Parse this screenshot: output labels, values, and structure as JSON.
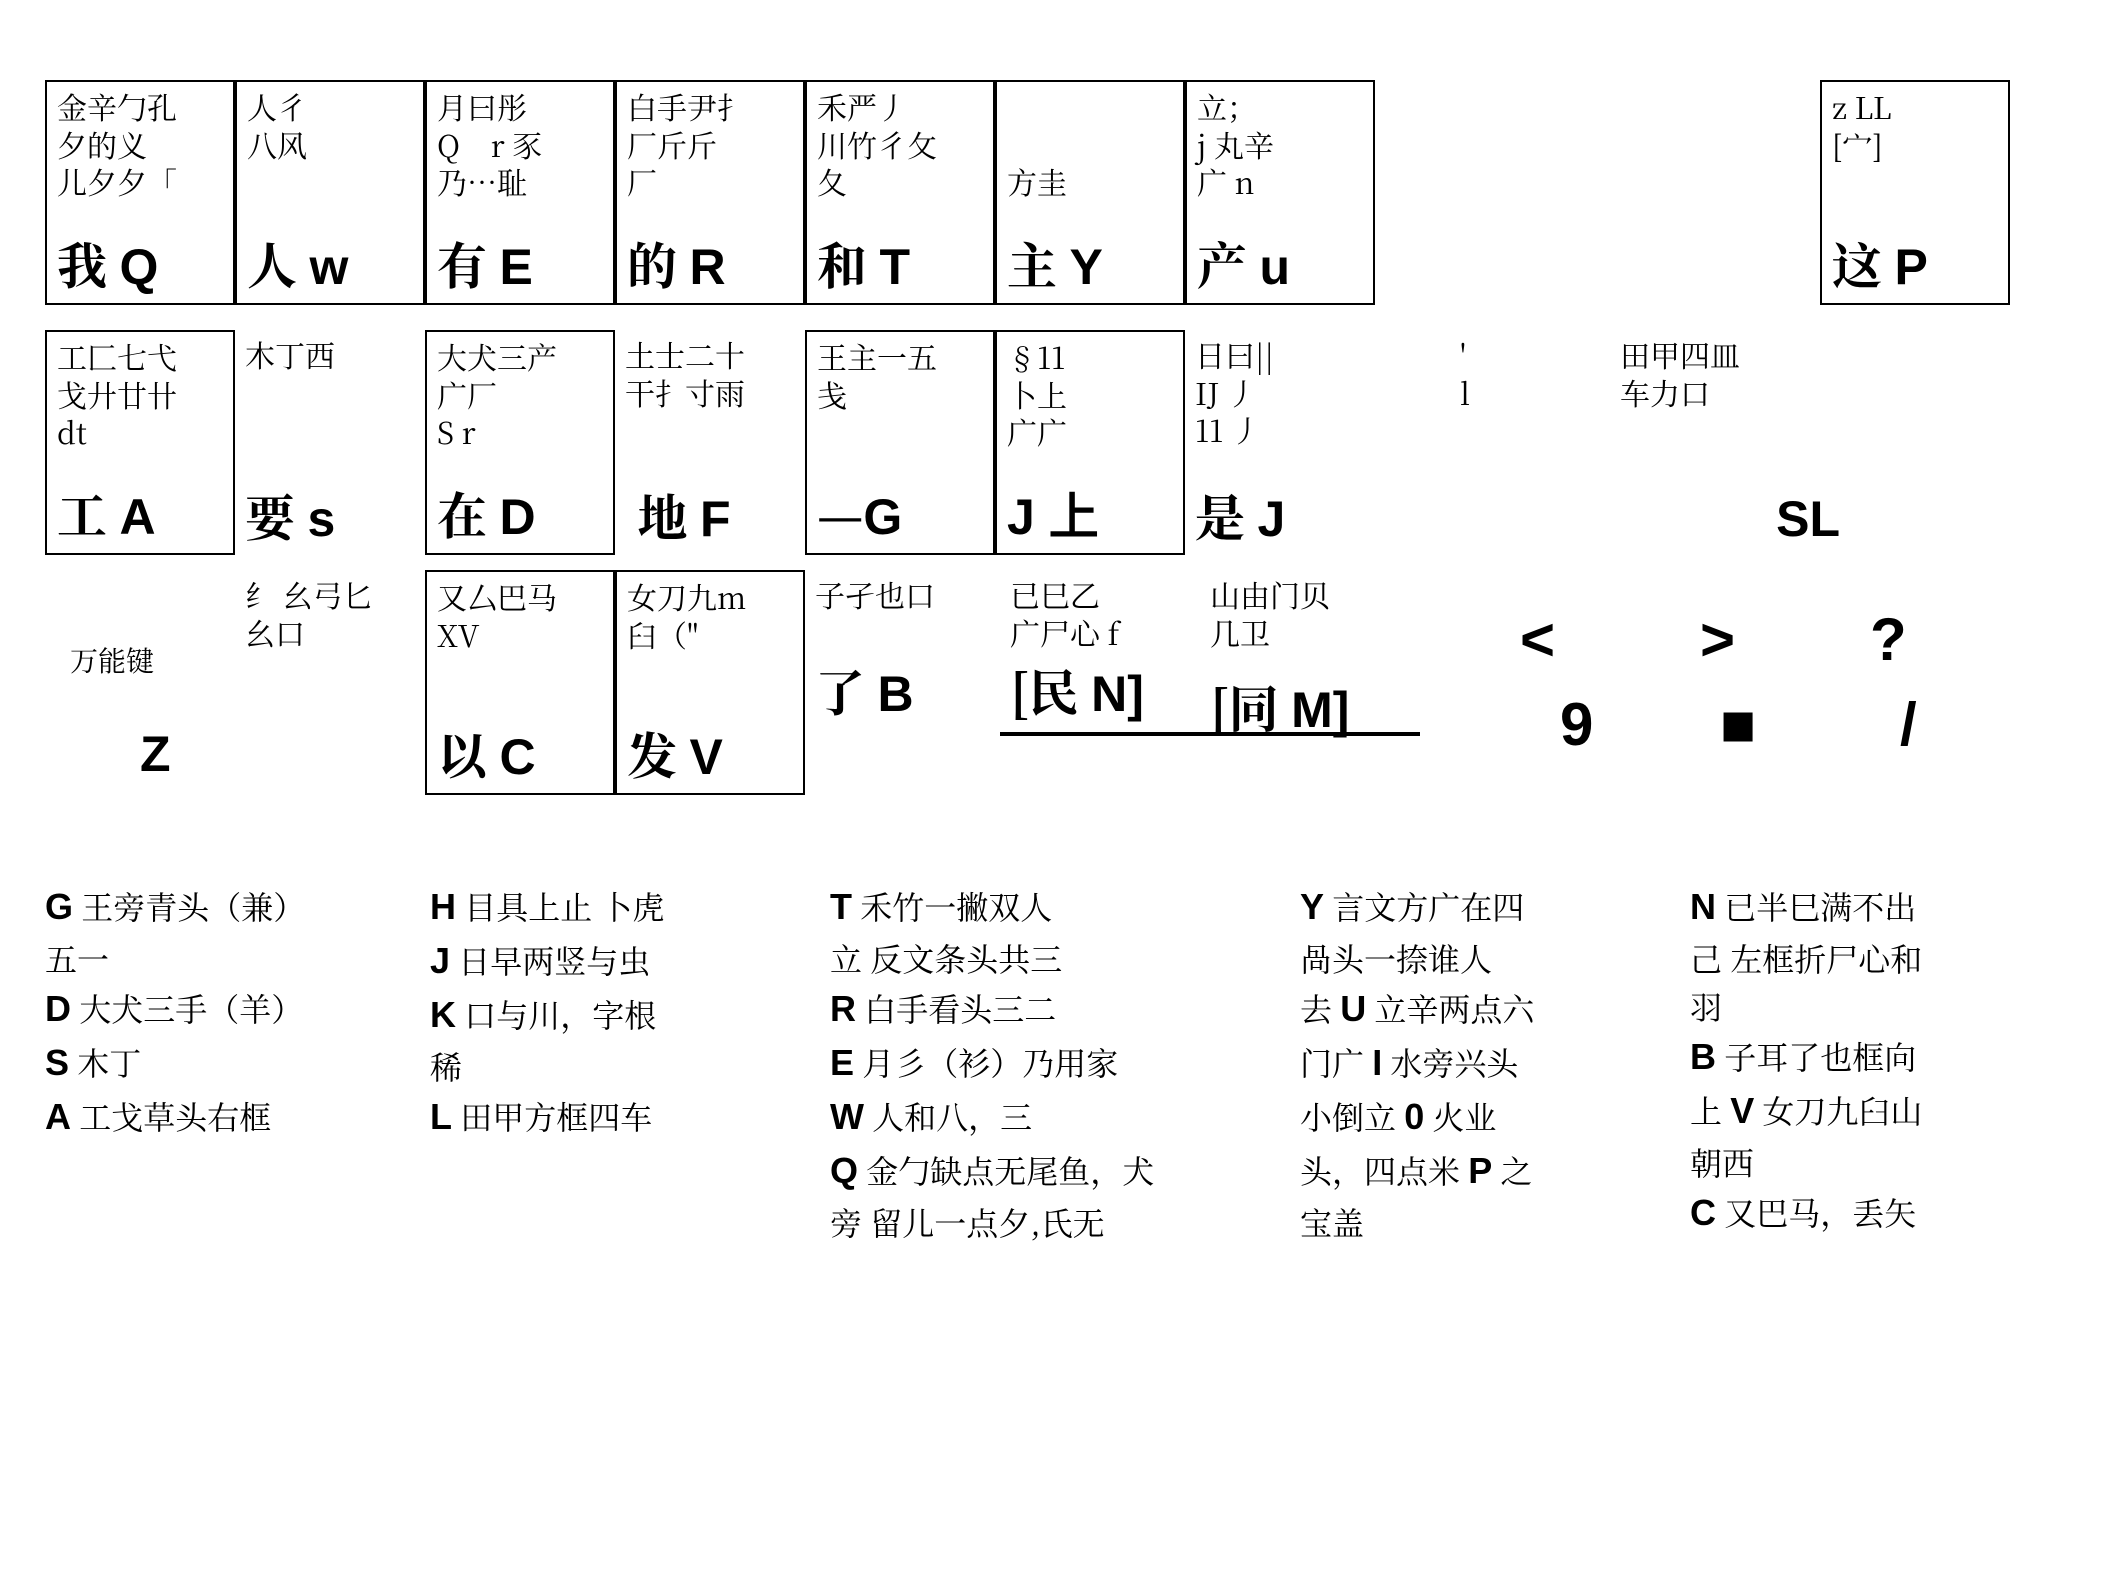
{
  "colors": {
    "border": "#000000",
    "background": "#ffffff",
    "text": "#000000"
  },
  "typography": {
    "body_font": "SimSun / Songti / serif CJK",
    "latin_font": "Arial / Helvetica / sans-serif",
    "small_fontsize_pt": 22,
    "main_fontsize_pt": 38,
    "symbol_fontsize_pt": 44,
    "mnemonic_fontsize_pt": 24
  },
  "labels": {
    "wildcard": "万能键"
  },
  "keys_row1": [
    {
      "id": "Q",
      "small": "金辛勹孔\n夕的义\n儿夕夕「",
      "main_cn": "我",
      "main_latin": "Q"
    },
    {
      "id": "W",
      "small": "人彳\n八风",
      "main_cn": "人",
      "main_latin": "w"
    },
    {
      "id": "E",
      "small": "月曰彤\nQ    r 豕\n乃…耻",
      "main_cn": "有",
      "main_latin": "E"
    },
    {
      "id": "R",
      "small": "白手尹扌\n厂斤斤\n厂",
      "main_cn": "的",
      "main_latin": "R"
    },
    {
      "id": "T",
      "small": "禾严丿\n川竹彳攵\n夂",
      "main_cn": "和",
      "main_latin": "T"
    },
    {
      "id": "Y",
      "small": "\n\n方圭",
      "main_cn": "主",
      "main_latin": "Y"
    },
    {
      "id": "U",
      "small": "立；\nj 丸辛\n广 n",
      "main_cn": "产",
      "main_latin": "u"
    },
    {
      "id": "P",
      "small": "z LL\n[宀]\n",
      "main_cn": "这",
      "main_latin": "P"
    }
  ],
  "keys_row2": [
    {
      "id": "A",
      "small": "工匚七弋\n戈廾廿卄\ndt",
      "main_cn": "工",
      "main_latin": "A"
    },
    {
      "id": "S",
      "small": "木丁西",
      "main_cn": "要",
      "main_latin": "s"
    },
    {
      "id": "D",
      "small": "大犬三产\n广厂\nS r",
      "main_cn": "在",
      "main_latin": "D"
    },
    {
      "id": "F",
      "small": "土士二十\n干扌寸雨",
      "main_cn": "地",
      "main_latin": "F"
    },
    {
      "id": "G",
      "small": "王主一五\n戋",
      "main_cn": "—",
      "main_latin": "G"
    },
    {
      "id": "H",
      "small": "§11\n卜上\n广广",
      "main_cn": "J 上",
      "main_latin": ""
    },
    {
      "id": "J",
      "small": "日曰|| \nIJ 丿\n11 丿",
      "main_cn": "是",
      "main_latin": "J"
    },
    {
      "id": "K",
      "small": "'\nl",
      "main_cn": "",
      "main_latin": ""
    },
    {
      "id": "L",
      "small": "田甲四皿\n车力口",
      "main_cn": "",
      "main_latin": "SL"
    }
  ],
  "keys_row3": [
    {
      "id": "Z",
      "small": "",
      "main_cn": "",
      "main_latin": "Z"
    },
    {
      "id": "X",
      "small": "纟 幺弓匕\n幺口",
      "main_cn": "",
      "main_latin": ""
    },
    {
      "id": "C",
      "small": "又厶巴马\nXV",
      "main_cn": "以",
      "main_latin": "C"
    },
    {
      "id": "V",
      "small": "女刀九m\n臼（\"",
      "main_cn": "发",
      "main_latin": "V"
    },
    {
      "id": "B",
      "small": "子孑也口",
      "main_cn": "了",
      "main_latin": "B"
    },
    {
      "id": "N",
      "small": "已巳乙\n广尸心 f",
      "main_cn": "[民",
      "main_latin": "N]"
    },
    {
      "id": "M",
      "small": "山由门贝\n几卫",
      "main_cn": "[同",
      "main_latin": "M]"
    }
  ],
  "symbols": {
    "lt": "<",
    "gt": ">",
    "qm": "?",
    "nine": "9",
    "block": "■",
    "slash": "/"
  },
  "mnemonics_col1": [
    {
      "lead": "G",
      "text": " 王旁青头（兼）"
    },
    {
      "lead": "",
      "text": "五一"
    },
    {
      "lead": "D",
      "text": " 大犬三手（羊）"
    },
    {
      "lead": "S",
      "text": " 木丁"
    },
    {
      "lead": "A",
      "text": " 工戈草头右框"
    }
  ],
  "mnemonics_col2": [
    {
      "lead": "H",
      "text": " 目具上止 卜虎"
    },
    {
      "lead": "J",
      "text": " 日早两竖与虫"
    },
    {
      "lead": "K",
      "text": " 口与川，字根"
    },
    {
      "lead": "",
      "text": "稀"
    },
    {
      "lead": "L",
      "text": " 田甲方框四车"
    }
  ],
  "mnemonics_col3": [
    {
      "lead": "T",
      "text": " 禾竹一撇双人"
    },
    {
      "lead": "",
      "text": "立  反文条头共三"
    },
    {
      "lead": "R",
      "text": " 白手看头三二"
    },
    {
      "lead": "E",
      "text": " 月彡（衫）乃用家"
    },
    {
      "lead": "W",
      "text": " 人和八，三"
    },
    {
      "lead": "Q",
      "text": " 金勹缺点无尾鱼，犬"
    },
    {
      "lead": "",
      "text": "旁  留儿一点夕,氏无"
    }
  ],
  "mnemonics_col4": [
    {
      "lead": "Y",
      "text": " 言文方广在四"
    },
    {
      "lead": "",
      "text": "  咼头一捺谁人"
    },
    {
      "lead": "",
      "text": "去 ",
      "lead2": "U",
      "text2": " 立辛两点六"
    },
    {
      "lead": "",
      "text": "门广 ",
      "lead2": "I",
      "text2": " 水旁兴头"
    },
    {
      "lead": "",
      "text": "小倒立 ",
      "lead2": "0",
      "text2": " 火业"
    },
    {
      "lead": "",
      "text": "头，四点米 ",
      "lead2": "P",
      "text2": " 之"
    },
    {
      "lead": "",
      "text": "宝盖"
    }
  ],
  "mnemonics_col5": [
    {
      "lead": "N",
      "text": " 已半巳满不出"
    },
    {
      "lead": "",
      "text": "己  左框折尸心和"
    },
    {
      "lead": "",
      "text": "              羽"
    },
    {
      "lead": "B",
      "text": " 子耳了也框向"
    },
    {
      "lead": "",
      "text": "上 ",
      "lead2": "V",
      "text2": " 女刀九臼山"
    },
    {
      "lead": "",
      "text": "              朝西"
    },
    {
      "lead": "C",
      "text": " 又巴马，丢矢"
    }
  ]
}
